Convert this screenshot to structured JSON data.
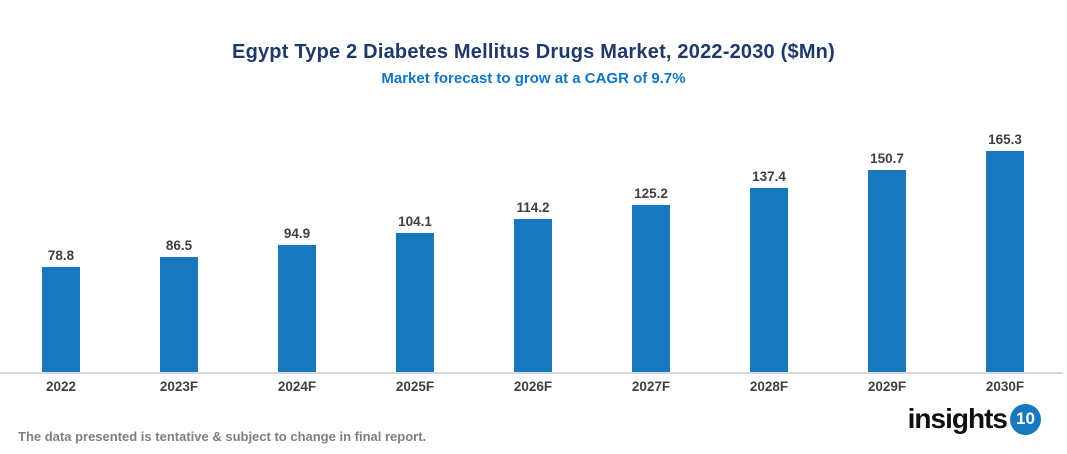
{
  "title": "Egypt Type 2 Diabetes Mellitus Drugs Market, 2022-2030 ($Mn)",
  "subtitle": "Market forecast to grow at a CAGR of 9.7%",
  "chart_data": {
    "type": "bar",
    "title": "Egypt Type 2 Diabetes Mellitus Drugs Market, 2022-2030 ($Mn)",
    "subtitle": "Market forecast to grow at a CAGR of 9.7%",
    "categories": [
      "2022",
      "2023F",
      "2024F",
      "2025F",
      "2026F",
      "2027F",
      "2028F",
      "2029F",
      "2030F"
    ],
    "values": [
      78.8,
      86.5,
      94.9,
      104.1,
      114.2,
      125.2,
      137.4,
      150.7,
      165.3
    ],
    "xlabel": "",
    "ylabel": "",
    "ylim": [
      0,
      180
    ],
    "grid": false,
    "legend": false,
    "value_labels": true,
    "bar_color": "#1878be"
  },
  "footer": {
    "disclaimer": "The data presented is tentative & subject to change in final report."
  },
  "logo": {
    "text": "insights",
    "badge": "10"
  },
  "colors": {
    "background": "#ffffff",
    "title_text": "#1f3968",
    "subtitle_text": "#0e76c4",
    "bar": "#1878be",
    "value_label_text": "#404040",
    "category_label_text": "#404040",
    "axis_line": "#d9d9d9",
    "footer_text": "#7f7f7f",
    "logo_text": "#111111",
    "logo_badge_bg": "#1878be",
    "logo_badge_text": "#ffffff"
  }
}
